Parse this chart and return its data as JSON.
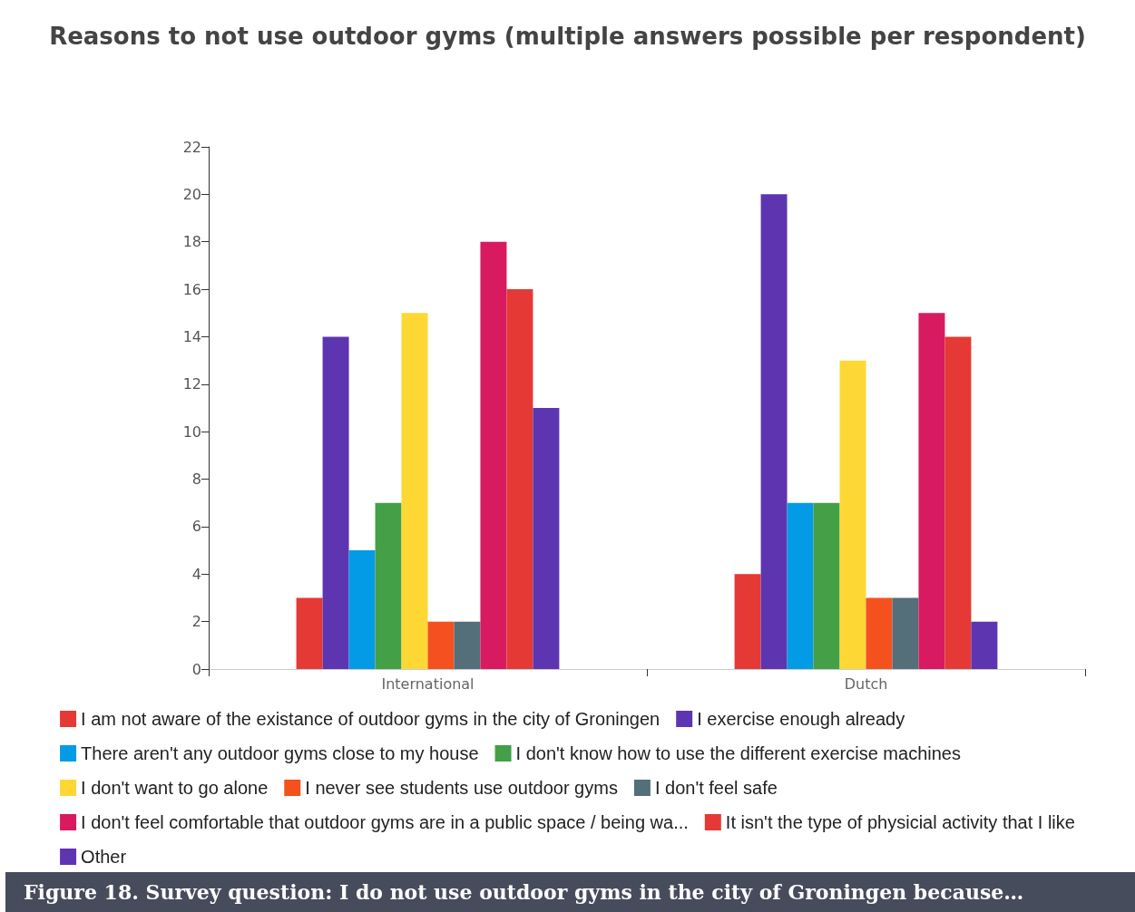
{
  "chart_data": {
    "type": "bar",
    "title": "Reasons to not use outdoor gyms (multiple answers possible per respondent)",
    "categories": [
      "International",
      "Dutch"
    ],
    "series": [
      {
        "name": "I am not aware of the existance of outdoor gyms in the city of Groningen",
        "color": "#e53935",
        "values": [
          3,
          4
        ]
      },
      {
        "name": "I exercise enough already",
        "color": "#5e35b1",
        "values": [
          14,
          20
        ]
      },
      {
        "name": "There aren't any outdoor gyms close to my house",
        "color": "#039be5",
        "values": [
          5,
          7
        ]
      },
      {
        "name": "I don't know how to use the different exercise machines",
        "color": "#43a047",
        "values": [
          7,
          7
        ]
      },
      {
        "name": "I don't want to go alone",
        "color": "#fdd835",
        "values": [
          15,
          13
        ]
      },
      {
        "name": "I never see students use outdoor gyms",
        "color": "#f4511e",
        "values": [
          2,
          3
        ]
      },
      {
        "name": "I don't feel safe",
        "color": "#546e7a",
        "values": [
          2,
          3
        ]
      },
      {
        "name": "I don't feel comfortable that outdoor gyms are in a public space / being wa...",
        "color": "#d81b60",
        "values": [
          18,
          15
        ]
      },
      {
        "name": "It isn't the type of physicial activity that I like",
        "color": "#e53935",
        "values": [
          16,
          14
        ]
      },
      {
        "name": "Other",
        "color": "#5e35b1",
        "values": [
          11,
          2
        ]
      }
    ],
    "ylim": [
      0,
      22
    ],
    "yticks": [
      0,
      2,
      4,
      6,
      8,
      10,
      12,
      14,
      16,
      18,
      20,
      22
    ],
    "grid": false,
    "legend": "bottom",
    "annotations": [
      "Figure 18. Survey question: I do not use outdoor gyms in the city of Groningen because…"
    ]
  }
}
